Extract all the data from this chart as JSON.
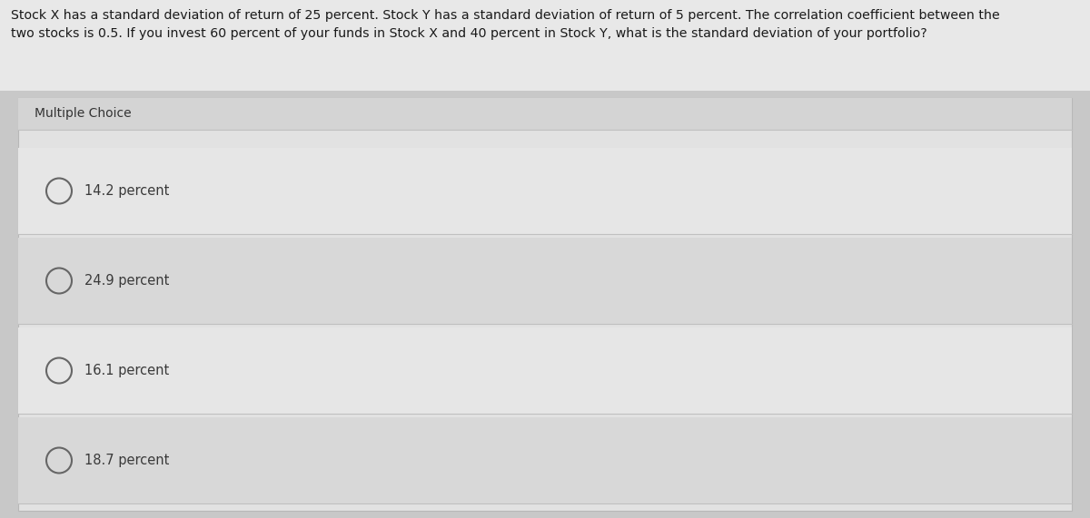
{
  "question_text": "Stock X has a standard deviation of return of 25 percent. Stock Y has a standard deviation of return of 5 percent. The correlation coefficient between the\ntwo stocks is 0.5. If you invest 60 percent of your funds in Stock X and 40 percent in Stock Y, what is the standard deviation of your portfolio?",
  "section_label": "Multiple Choice",
  "choices": [
    "14.2 percent",
    "24.9 percent",
    "16.1 percent",
    "18.7 percent"
  ],
  "bg_color": "#c8c8c8",
  "outer_bg": "#c8c8c8",
  "card_color": "#e2e2e2",
  "question_bg": "#e8e8e8",
  "row_light": "#e6e6e6",
  "row_dark": "#d8d8d8",
  "header_row": "#d4d4d4",
  "border_color": "#b8b8b8",
  "sep_color": "#c0c0c0",
  "text_color": "#1a1a1a",
  "section_text_color": "#333333",
  "choice_text_color": "#3a3a3a",
  "circle_edge_color": "#666666",
  "fig_width": 12.0,
  "fig_height": 5.71
}
